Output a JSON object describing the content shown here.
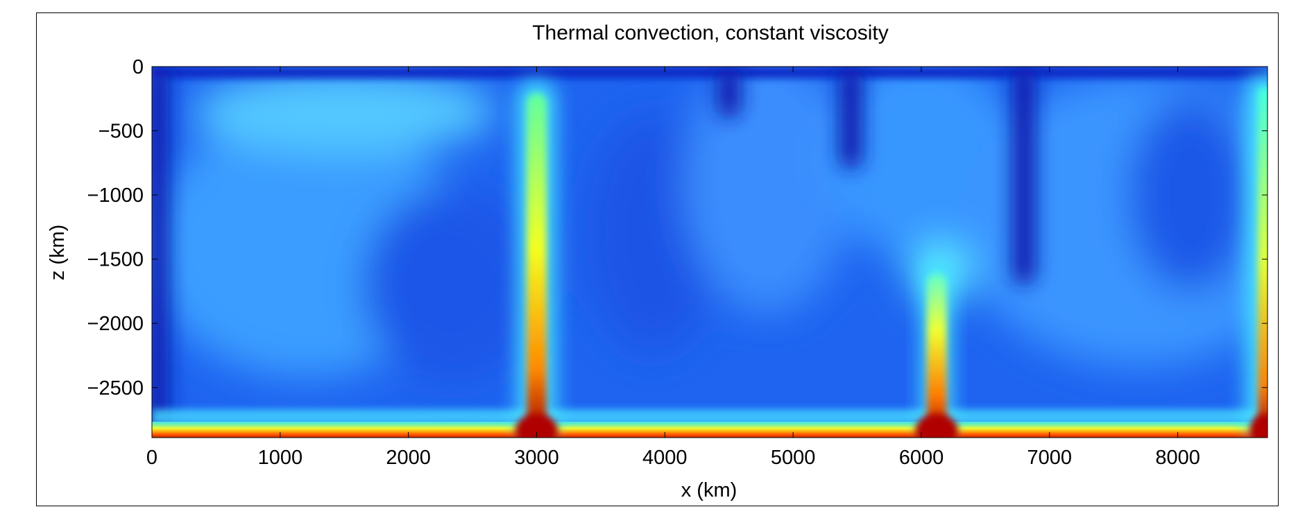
{
  "chart_data": {
    "type": "heatmap",
    "title": "Thermal convection, constant viscosity",
    "xlabel": "x (km)",
    "ylabel": "z (km)",
    "xlim": [
      0,
      8700
    ],
    "ylim": [
      -2890,
      0
    ],
    "x_ticks": [
      0,
      1000,
      2000,
      3000,
      4000,
      5000,
      6000,
      7000,
      8000
    ],
    "x_tick_labels": [
      "0",
      "1000",
      "2000",
      "3000",
      "4000",
      "5000",
      "6000",
      "7000",
      "8000"
    ],
    "y_ticks": [
      0,
      -500,
      -1000,
      -1500,
      -2000,
      -2500
    ],
    "y_tick_labels": [
      "0",
      "−500",
      "−1000",
      "−1500",
      "−2000",
      "−2500"
    ],
    "colormap": "jet",
    "legend": "none",
    "grid": false,
    "temperature_field_features": {
      "description_scale": "normalized temperature 0 (cold, dark blue) to 1 (hot, dark red)",
      "hot_bottom_boundary_layer": {
        "z_range_km": [
          -2890,
          -2820
        ],
        "value": 1.0
      },
      "cold_top_boundary_layer": {
        "z_range_km": [
          -60,
          0
        ],
        "value": 0.05
      },
      "upwelling_plumes": [
        {
          "x_km": 3000,
          "z_top_km": -100,
          "z_bottom_km": -2890,
          "peak_value": 1.0
        },
        {
          "x_km": 6120,
          "z_top_km": -1500,
          "z_bottom_km": -2890,
          "peak_value": 1.0
        },
        {
          "x_km": 8680,
          "z_top_km": -50,
          "z_bottom_km": -2890,
          "peak_value": 0.9
        }
      ],
      "downwelling_features": [
        {
          "x_km": 4500,
          "z_top_km": 0,
          "z_bottom_km": -400,
          "value": 0.12
        },
        {
          "x_km": 5450,
          "z_top_km": 0,
          "z_bottom_km": -800,
          "value": 0.1
        },
        {
          "x_km": 6800,
          "z_top_km": 0,
          "z_bottom_km": -1700,
          "value": 0.12
        },
        {
          "x_km": 50,
          "z_top_km": 0,
          "z_bottom_km": -2890,
          "value": 0.1
        }
      ],
      "interior_value": 0.28
    }
  }
}
